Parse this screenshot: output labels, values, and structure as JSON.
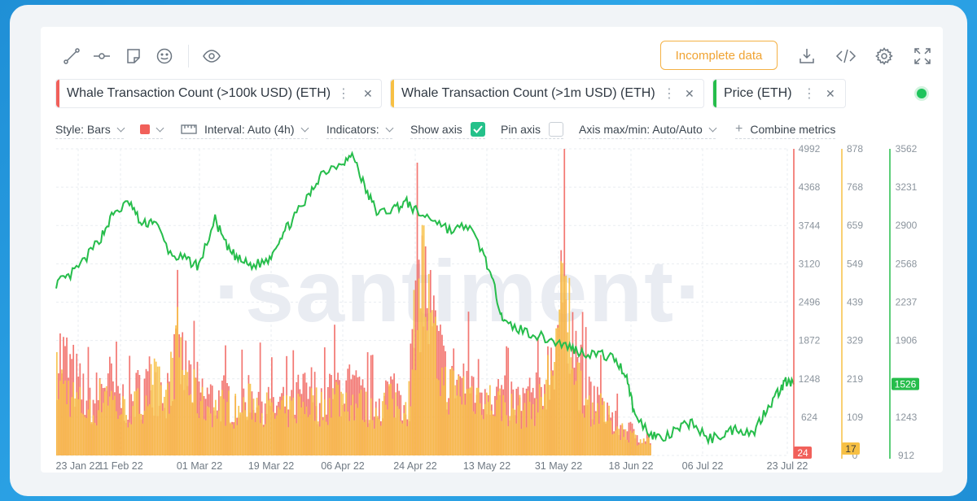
{
  "toolbar": {
    "incomplete_label": "Incomplete data",
    "icons": [
      "line-tool-icon",
      "horizontal-line-icon",
      "note-icon",
      "emoji-icon",
      "eye-icon",
      "download-icon",
      "embed-code-icon",
      "settings-icon",
      "fullscreen-icon"
    ]
  },
  "metrics": [
    {
      "label": "Whale Transaction Count (>100k USD) (ETH)",
      "color": "#f1605a"
    },
    {
      "label": "Whale Transaction Count (>1m USD) (ETH)",
      "color": "#f7c044"
    },
    {
      "label": "Price (ETH)",
      "color": "#26bd4b"
    }
  ],
  "options": {
    "style_label": "Style: Bars",
    "interval_label": "Interval: Auto (4h)",
    "indicators_label": "Indicators:",
    "show_axis_label": "Show axis",
    "pin_axis_label": "Pin axis",
    "axis_maxmin_label": "Axis max/min: Auto/Auto",
    "combine_label": "Combine metrics",
    "combine_prefix": "+",
    "swatch_color": "#f1605a"
  },
  "chart_data": {
    "type": "bar",
    "x_tick_labels": [
      "23 Jan 22",
      "11 Feb 22",
      "01 Mar 22",
      "19 Mar 22",
      "06 Apr 22",
      "24 Apr 22",
      "13 May 22",
      "31 May 22",
      "18 Jun 22",
      "06 Jul 22",
      "23 Jul 22"
    ],
    "x_range": [
      "2022-01-23",
      "2022-07-23"
    ],
    "watermark": "·santiment·",
    "series": [
      {
        "name": "Whale Transaction Count (>100k USD) (ETH)",
        "type": "bar",
        "color": "#f1605a",
        "ylim": [
          0,
          4992
        ],
        "ticks": [
          4992,
          4368,
          3744,
          3120,
          2496,
          1872,
          1248,
          624
        ],
        "last_value_badge": "24",
        "values_approx": [
          1800,
          1500,
          1100,
          900,
          1350,
          1000,
          900,
          1150,
          1300,
          1100,
          1700,
          1300,
          1050,
          950,
          1000,
          900,
          1100,
          1000,
          850,
          900,
          1000,
          1100,
          950,
          1200,
          1150,
          1000,
          900,
          1050,
          1100,
          950,
          3200,
          2200,
          1400,
          1350,
          1300,
          1200,
          1100,
          1000,
          900,
          1000,
          1100,
          1800,
          3000,
          1500,
          1000,
          900,
          600,
          450,
          350,
          300
        ]
      },
      {
        "name": "Whale Transaction Count (>1m USD) (ETH)",
        "type": "bar",
        "color": "#f7c044",
        "ylim": [
          0,
          878
        ],
        "ticks": [
          878,
          768,
          659,
          549,
          439,
          329,
          219,
          109,
          0
        ],
        "last_value_badge": "17",
        "values_approx": [
          230,
          190,
          150,
          120,
          210,
          140,
          130,
          160,
          220,
          160,
          330,
          200,
          150,
          140,
          150,
          130,
          160,
          150,
          120,
          130,
          150,
          160,
          140,
          180,
          170,
          150,
          130,
          150,
          160,
          140,
          620,
          330,
          210,
          200,
          190,
          180,
          160,
          150,
          130,
          140,
          160,
          300,
          500,
          230,
          150,
          130,
          90,
          70,
          50,
          40
        ]
      },
      {
        "name": "Price (ETH)",
        "type": "line",
        "color": "#26bd4b",
        "ylim": [
          912,
          3562
        ],
        "ticks": [
          3562,
          3231,
          2900,
          2568,
          2237,
          1906,
          1243,
          912
        ],
        "last_value_badge": "1526",
        "x": [
          "2022-01-23",
          "2022-01-26",
          "2022-01-30",
          "2022-02-03",
          "2022-02-06",
          "2022-02-10",
          "2022-02-13",
          "2022-02-16",
          "2022-02-20",
          "2022-02-24",
          "2022-02-27",
          "2022-03-03",
          "2022-03-06",
          "2022-03-09",
          "2022-03-12",
          "2022-03-16",
          "2022-03-19",
          "2022-03-22",
          "2022-03-26",
          "2022-03-29",
          "2022-04-03",
          "2022-04-06",
          "2022-04-09",
          "2022-04-12",
          "2022-04-16",
          "2022-04-19",
          "2022-04-22",
          "2022-04-26",
          "2022-04-30",
          "2022-05-04",
          "2022-05-08",
          "2022-05-11",
          "2022-05-13",
          "2022-05-17",
          "2022-05-21",
          "2022-05-25",
          "2022-05-29",
          "2022-06-01",
          "2022-06-05",
          "2022-06-09",
          "2022-06-12",
          "2022-06-14",
          "2022-06-18",
          "2022-06-21",
          "2022-06-25",
          "2022-06-28",
          "2022-07-02",
          "2022-07-06",
          "2022-07-09",
          "2022-07-13",
          "2022-07-16",
          "2022-07-19",
          "2022-07-21",
          "2022-07-23"
        ],
        "values": [
          2400,
          2450,
          2600,
          2800,
          3000,
          3100,
          2900,
          2950,
          2650,
          2600,
          2550,
          2950,
          2700,
          2600,
          2550,
          2600,
          2800,
          2950,
          3150,
          3350,
          3450,
          3500,
          3200,
          3000,
          3050,
          3100,
          3000,
          2950,
          2850,
          2900,
          2650,
          2300,
          2050,
          2000,
          1950,
          1900,
          1850,
          1800,
          1790,
          1750,
          1600,
          1250,
          1100,
          1050,
          1150,
          1200,
          1050,
          1100,
          1150,
          1100,
          1300,
          1450,
          1550,
          1526
        ]
      }
    ]
  }
}
